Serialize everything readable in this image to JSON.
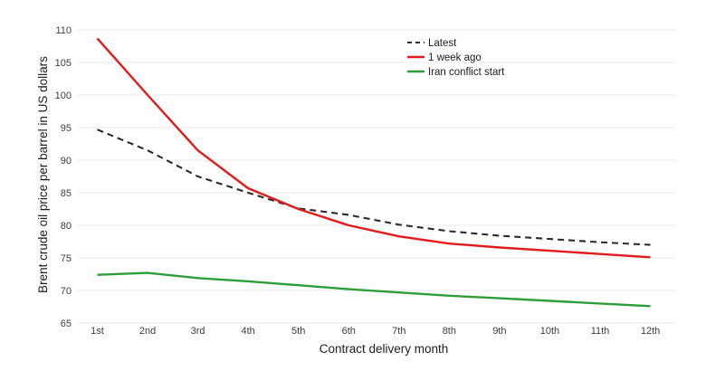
{
  "chart_data": {
    "type": "line",
    "title": "",
    "xlabel": "Contract delivery month",
    "ylabel": "Brent crude oil price per barrel in US dollars",
    "categories": [
      "1st",
      "2nd",
      "3rd",
      "4th",
      "5th",
      "6th",
      "7th",
      "8th",
      "9th",
      "10th",
      "11th",
      "12th"
    ],
    "ylim": [
      65,
      110
    ],
    "ytick_step": 5,
    "yticks": [
      65,
      70,
      75,
      80,
      85,
      90,
      95,
      100,
      105,
      110
    ],
    "grid": "horizontal-only",
    "legend_position": "top-center-right",
    "legend_entries": [
      "Latest",
      "1 week ago",
      "Iran conflict start"
    ],
    "series": [
      {
        "name": "Latest",
        "key": "latest",
        "style": "dashed",
        "color": "#2b2b2b",
        "values": [
          94.7,
          91.5,
          87.5,
          85.0,
          82.6,
          81.6,
          80.1,
          79.1,
          78.4,
          77.9,
          77.4,
          77.0
        ]
      },
      {
        "name": "1 week ago",
        "key": "one-week-ago",
        "style": "solid",
        "color": "#e31a1c",
        "values": [
          108.7,
          100.0,
          91.5,
          85.7,
          82.5,
          80.0,
          78.3,
          77.2,
          76.6,
          76.1,
          75.6,
          75.1
        ]
      },
      {
        "name": "Iran conflict start",
        "key": "iran-conflict-start",
        "style": "solid",
        "color": "#2e9e38",
        "values": [
          72.4,
          72.7,
          71.9,
          71.4,
          70.8,
          70.2,
          69.7,
          69.2,
          68.8,
          68.4,
          68.0,
          67.6
        ]
      }
    ]
  },
  "colors": {
    "background": "#ffffff",
    "gridline": "#e8e8e8",
    "tick_text": "#3d3d3d",
    "axis_label_text": "#1c1c1c",
    "legend_text": "#1c1c1c"
  }
}
